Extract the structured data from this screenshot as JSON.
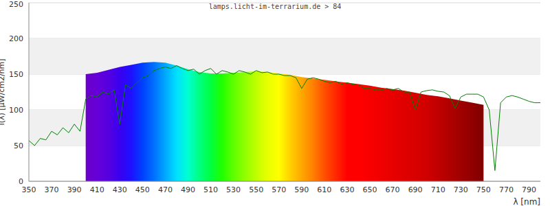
{
  "chart_data": {
    "type": "line",
    "title": "lamps.licht-im-terrarium.de > 84",
    "xlabel": "λ [nm]",
    "ylabel": "I(λ) [µW/cm2/nm]",
    "xlim": [
      350,
      800
    ],
    "xticks": [
      350,
      370,
      390,
      410,
      430,
      450,
      470,
      490,
      510,
      530,
      550,
      570,
      590,
      610,
      630,
      650,
      670,
      690,
      710,
      730,
      750,
      770,
      790
    ],
    "ylim": [
      0,
      250
    ],
    "yticks": [
      0,
      50,
      100,
      150,
      200,
      250
    ],
    "grid": true,
    "series": [
      {
        "type": "area",
        "x": [
          400,
          410,
          420,
          430,
          440,
          450,
          460,
          470,
          480,
          490,
          500,
          510,
          520,
          530,
          540,
          550,
          560,
          570,
          580,
          590,
          600,
          610,
          620,
          630,
          640,
          650,
          660,
          670,
          680,
          690,
          700,
          710,
          720,
          730,
          740,
          750
        ],
        "values": [
          150,
          152,
          156,
          160,
          163,
          166,
          167,
          166,
          162,
          157,
          153,
          151,
          151,
          152,
          153,
          154,
          153,
          151,
          149,
          146,
          144,
          142,
          140,
          138,
          136,
          134,
          131,
          129,
          127,
          124,
          121,
          119,
          116,
          113,
          110,
          107
        ],
        "colors": [
          "#6a00c8",
          "#6600d8",
          "#5500e0",
          "#3a00f0",
          "#1e10ff",
          "#0040ff",
          "#0070ff",
          "#00a8ff",
          "#00e0ff",
          "#00ffd0",
          "#00ff80",
          "#00ff40",
          "#20ff00",
          "#60ff00",
          "#90ff00",
          "#c0ff00",
          "#e8ff00",
          "#ffff00",
          "#ffd000",
          "#ffa800",
          "#ff8000",
          "#ff5000",
          "#ff2800",
          "#ff0000",
          "#ff0000",
          "#f80000",
          "#f00000",
          "#e80000",
          "#e00000",
          "#d80000",
          "#d00000",
          "#c00000",
          "#b00000",
          "#a00000",
          "#900000",
          "#800000"
        ]
      },
      {
        "type": "line",
        "color": "#008000",
        "x": [
          350,
          355,
          360,
          365,
          370,
          375,
          380,
          385,
          390,
          395,
          400,
          405,
          410,
          415,
          420,
          425,
          430,
          435,
          440,
          445,
          450,
          455,
          460,
          465,
          470,
          475,
          480,
          485,
          490,
          495,
          500,
          505,
          510,
          515,
          520,
          525,
          530,
          535,
          540,
          545,
          550,
          555,
          560,
          565,
          570,
          575,
          580,
          585,
          590,
          595,
          600,
          605,
          610,
          615,
          620,
          625,
          630,
          635,
          640,
          645,
          650,
          655,
          660,
          665,
          670,
          675,
          680,
          685,
          690,
          695,
          700,
          705,
          710,
          715,
          720,
          725,
          730,
          735,
          740,
          745,
          750,
          755,
          760,
          765,
          770,
          775,
          780,
          785,
          790,
          795,
          800
        ],
        "values": [
          57,
          50,
          60,
          58,
          70,
          65,
          75,
          68,
          80,
          70,
          115,
          120,
          118,
          125,
          122,
          128,
          80,
          135,
          130,
          138,
          145,
          148,
          155,
          158,
          160,
          158,
          162,
          158,
          155,
          157,
          150,
          155,
          158,
          150,
          155,
          153,
          150,
          155,
          153,
          150,
          155,
          152,
          153,
          150,
          150,
          148,
          148,
          145,
          130,
          143,
          145,
          143,
          140,
          138,
          140,
          136,
          138,
          136,
          135,
          130,
          130,
          128,
          128,
          130,
          128,
          130,
          125,
          125,
          100,
          125,
          127,
          128,
          126,
          125,
          120,
          102,
          118,
          122,
          122,
          122,
          118,
          100,
          15,
          110,
          118,
          120,
          118,
          115,
          112,
          110,
          110
        ]
      }
    ]
  }
}
